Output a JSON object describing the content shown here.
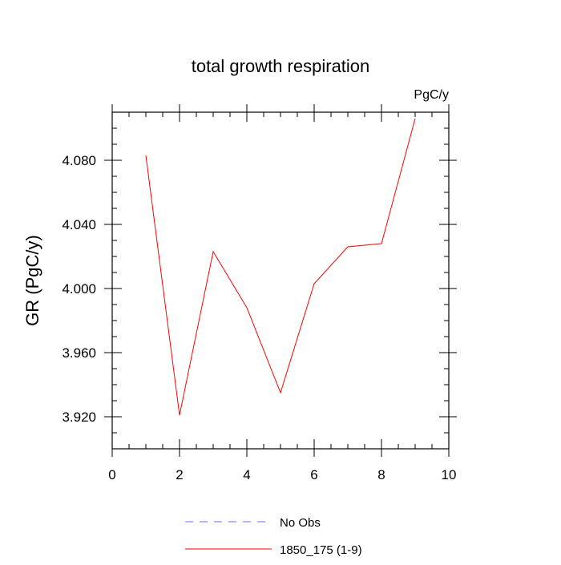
{
  "chart_data": {
    "type": "line",
    "title": "total growth respiration",
    "units": "PgC/y",
    "xlabel": "",
    "ylabel": "GR  (PgC/y)",
    "xlim": [
      0,
      10
    ],
    "ylim": [
      3.9,
      4.11
    ],
    "xticks": [
      0,
      2,
      4,
      6,
      8,
      10
    ],
    "xtick_labels": [
      "0",
      "2",
      "4",
      "6",
      "8",
      "10"
    ],
    "yticks": [
      3.92,
      3.96,
      4.0,
      4.04,
      4.08
    ],
    "ytick_labels": [
      "3.920",
      "3.960",
      "4.000",
      "4.040",
      "4.080"
    ],
    "series": [
      {
        "name": "1850_175 (1-9)",
        "color": "#ff0000",
        "x": [
          1,
          2,
          3,
          4,
          5,
          6,
          7,
          8,
          9
        ],
        "values": [
          4.083,
          3.921,
          4.023,
          3.988,
          3.935,
          4.003,
          4.026,
          4.028,
          4.106
        ]
      }
    ],
    "legend": [
      {
        "label": "No Obs",
        "color": "#6a6aff",
        "style": "dashed"
      },
      {
        "label": "1850_175 (1-9)",
        "color": "#ff0000",
        "style": "solid"
      }
    ],
    "legend_position": "bottom-center"
  }
}
